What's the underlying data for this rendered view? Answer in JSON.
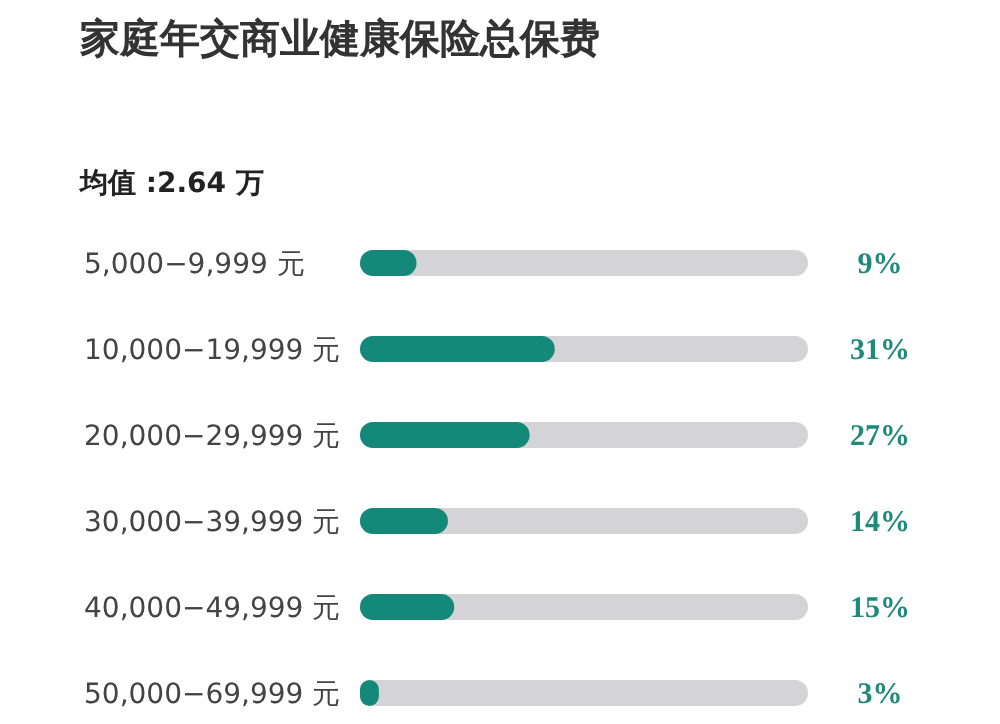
{
  "chart_data": {
    "type": "bar",
    "orientation": "horizontal",
    "title": "家庭年交商业健康保险总保费",
    "subtitle": "均值 :2.64 万",
    "categories": [
      "5,000−9,999 元",
      "10,000−19,999 元",
      "20,000−29,999 元",
      "30,000−39,999 元",
      "40,000−49,999 元",
      "50,000−69,999 元"
    ],
    "values": [
      9,
      31,
      27,
      14,
      15,
      3
    ],
    "value_labels": [
      "9%",
      "31%",
      "27%",
      "14%",
      "15%",
      "3%"
    ],
    "color": "#14897a"
  }
}
